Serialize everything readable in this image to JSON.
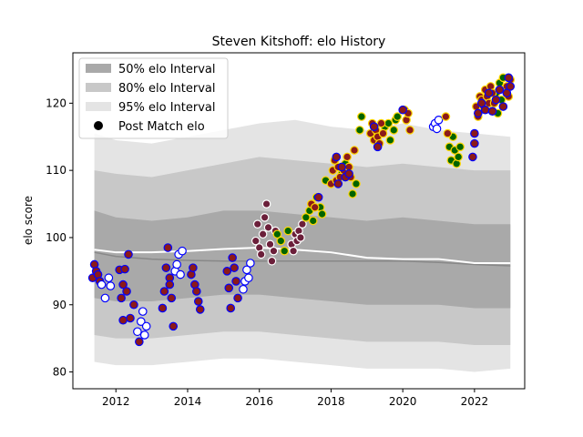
{
  "chart_data": {
    "type": "scatter",
    "title": "Steven Kitshoff: elo History",
    "xlabel": "",
    "ylabel": "elo score",
    "xlim": [
      2010.8,
      2023.4
    ],
    "ylim": [
      77.5,
      127.5
    ],
    "x_ticks": [
      2012,
      2014,
      2016,
      2018,
      2020,
      2022
    ],
    "y_ticks": [
      80,
      90,
      100,
      110,
      120
    ],
    "grid": false,
    "legend": {
      "placement": "top-left",
      "entries": [
        "50% elo Interval",
        "80% elo Interval",
        "95% elo Interval",
        "Post Match elo"
      ]
    },
    "colors": {
      "band50": "#a9a9a9",
      "band80": "#c8c8c8",
      "band95": "#e4e4e4",
      "median_line": "#ffffff",
      "mean_line": "#888888",
      "fill_win": "#8b1a1a",
      "fill_draw": "#ffffff",
      "fill_green": "#006400",
      "fill_maroon": "#6b1f3a",
      "edge_blue": "#0000ff",
      "edge_yellow": "#ffd700",
      "edge_white": "#ffffff"
    },
    "bands": {
      "x": [
        2011.4,
        2012.0,
        2013.0,
        2014.0,
        2015.0,
        2016.0,
        2017.0,
        2018.0,
        2019.0,
        2020.0,
        2021.0,
        2022.0,
        2023.0
      ],
      "p95_hi": [
        115.5,
        114.5,
        114.0,
        115.0,
        116.0,
        117.0,
        117.5,
        116.5,
        116.0,
        117.0,
        116.0,
        115.5,
        115.0
      ],
      "p80_hi": [
        110.0,
        109.5,
        109.0,
        110.0,
        111.0,
        112.0,
        111.5,
        111.0,
        110.5,
        111.0,
        110.5,
        110.0,
        110.0
      ],
      "p50_hi": [
        104.0,
        103.0,
        102.5,
        103.0,
        104.0,
        104.0,
        103.5,
        103.0,
        102.5,
        103.0,
        102.5,
        102.0,
        102.0
      ],
      "p50_lo": [
        91.0,
        90.5,
        90.5,
        91.0,
        91.5,
        91.5,
        91.0,
        90.5,
        90.0,
        90.0,
        90.0,
        89.5,
        89.5
      ],
      "p80_lo": [
        85.5,
        85.0,
        85.0,
        85.5,
        86.0,
        86.0,
        85.5,
        85.0,
        84.5,
        84.5,
        84.5,
        84.0,
        84.0
      ],
      "p95_lo": [
        81.5,
        81.0,
        81.0,
        81.5,
        82.0,
        82.0,
        81.5,
        81.0,
        80.5,
        80.5,
        80.5,
        80.0,
        80.5
      ],
      "median": [
        98.2,
        97.8,
        97.8,
        98.0,
        98.3,
        98.5,
        98.2,
        97.8,
        97.0,
        96.8,
        96.8,
        96.2,
        96.2
      ],
      "mean": [
        97.8,
        97.2,
        96.8,
        96.6,
        96.5,
        96.5,
        96.5,
        96.5,
        96.5,
        96.5,
        96.3,
        96.0,
        95.8
      ]
    },
    "series": [
      {
        "fill": "fill_win",
        "edge": "edge_blue",
        "points": [
          [
            2011.35,
            94.0
          ],
          [
            2011.4,
            96.0
          ],
          [
            2011.45,
            95.0
          ],
          [
            2011.5,
            94.5
          ],
          [
            2011.55,
            93.5
          ],
          [
            2012.1,
            95.2
          ],
          [
            2012.15,
            91.0
          ],
          [
            2012.2,
            93.0
          ],
          [
            2012.25,
            95.3
          ],
          [
            2012.3,
            92.0
          ],
          [
            2012.35,
            97.5
          ],
          [
            2012.4,
            88.0
          ],
          [
            2012.2,
            87.7
          ],
          [
            2012.5,
            90.0
          ],
          [
            2012.65,
            84.5
          ],
          [
            2013.3,
            89.5
          ],
          [
            2013.35,
            92.0
          ],
          [
            2013.4,
            95.5
          ],
          [
            2013.45,
            98.5
          ],
          [
            2013.5,
            94.0
          ],
          [
            2013.55,
            91.0
          ],
          [
            2013.6,
            86.8
          ],
          [
            2013.5,
            93.0
          ],
          [
            2014.1,
            94.5
          ],
          [
            2014.15,
            95.5
          ],
          [
            2014.2,
            93.0
          ],
          [
            2014.25,
            92.0
          ],
          [
            2014.3,
            90.5
          ],
          [
            2014.35,
            89.3
          ],
          [
            2015.1,
            95.0
          ],
          [
            2015.15,
            92.5
          ],
          [
            2015.2,
            89.5
          ],
          [
            2015.25,
            97.0
          ],
          [
            2015.3,
            95.5
          ],
          [
            2015.35,
            93.5
          ],
          [
            2015.4,
            91.0
          ]
        ]
      },
      {
        "fill": "fill_draw",
        "edge": "edge_blue",
        "points": [
          [
            2011.6,
            93.0
          ],
          [
            2011.7,
            91.0
          ],
          [
            2011.8,
            94.0
          ],
          [
            2011.85,
            92.8
          ],
          [
            2012.6,
            86.0
          ],
          [
            2012.7,
            87.5
          ],
          [
            2012.75,
            89.0
          ],
          [
            2012.8,
            85.5
          ],
          [
            2012.85,
            86.8
          ],
          [
            2013.65,
            95.0
          ],
          [
            2013.7,
            96.0
          ],
          [
            2013.75,
            97.5
          ],
          [
            2013.8,
            94.5
          ],
          [
            2013.85,
            98.0
          ],
          [
            2015.6,
            93.5
          ],
          [
            2015.65,
            95.2
          ],
          [
            2015.7,
            94.0
          ],
          [
            2015.75,
            96.2
          ],
          [
            2015.55,
            92.3
          ],
          [
            2020.85,
            116.5
          ],
          [
            2020.9,
            117.0
          ],
          [
            2020.95,
            116.2
          ],
          [
            2021.0,
            117.5
          ]
        ]
      },
      {
        "fill": "fill_maroon",
        "edge": "edge_white",
        "points": [
          [
            2015.9,
            99.5
          ],
          [
            2015.95,
            102.0
          ],
          [
            2016.0,
            98.5
          ],
          [
            2016.05,
            97.5
          ],
          [
            2016.1,
            100.5
          ],
          [
            2016.15,
            103.0
          ],
          [
            2016.2,
            105.0
          ],
          [
            2016.25,
            101.5
          ],
          [
            2016.3,
            99.0
          ],
          [
            2016.35,
            96.5
          ],
          [
            2016.4,
            98.0
          ],
          [
            2016.45,
            101.0
          ],
          [
            2016.9,
            99.0
          ],
          [
            2016.95,
            98.0
          ],
          [
            2017.0,
            100.5
          ],
          [
            2017.05,
            99.5
          ],
          [
            2017.1,
            101.0
          ],
          [
            2017.15,
            100.0
          ],
          [
            2017.2,
            102.0
          ]
        ]
      },
      {
        "fill": "fill_green",
        "edge": "edge_yellow",
        "points": [
          [
            2016.5,
            100.5
          ],
          [
            2016.6,
            99.5
          ],
          [
            2016.7,
            98.0
          ],
          [
            2016.8,
            101.0
          ],
          [
            2017.3,
            103.0
          ],
          [
            2017.4,
            104.0
          ],
          [
            2017.5,
            102.5
          ],
          [
            2017.6,
            106.0
          ],
          [
            2017.7,
            104.5
          ],
          [
            2017.75,
            103.5
          ],
          [
            2017.85,
            108.5
          ],
          [
            2018.3,
            109.5
          ],
          [
            2018.4,
            111.0
          ],
          [
            2018.6,
            106.5
          ],
          [
            2018.7,
            108.0
          ],
          [
            2018.8,
            116.0
          ],
          [
            2018.85,
            118.0
          ],
          [
            2019.5,
            116.5
          ],
          [
            2019.6,
            117.0
          ],
          [
            2019.65,
            114.5
          ],
          [
            2019.75,
            116.0
          ],
          [
            2019.8,
            117.5
          ],
          [
            2019.85,
            118.0
          ],
          [
            2021.3,
            113.5
          ],
          [
            2021.35,
            111.5
          ],
          [
            2021.4,
            115.0
          ],
          [
            2021.45,
            113.0
          ],
          [
            2021.5,
            111.0
          ],
          [
            2021.55,
            112.0
          ],
          [
            2021.6,
            113.5
          ],
          [
            2022.6,
            121.5
          ],
          [
            2022.65,
            118.5
          ],
          [
            2022.7,
            123.0
          ],
          [
            2022.75,
            120.5
          ],
          [
            2022.8,
            123.8
          ],
          [
            2022.85,
            122.0
          ]
        ]
      },
      {
        "fill": "fill_win",
        "edge": "edge_yellow",
        "points": [
          [
            2017.45,
            105.0
          ],
          [
            2017.55,
            104.5
          ],
          [
            2018.0,
            108.0
          ],
          [
            2018.05,
            110.0
          ],
          [
            2018.1,
            111.5
          ],
          [
            2018.15,
            108.5
          ],
          [
            2018.2,
            110.5
          ],
          [
            2018.25,
            109.0
          ],
          [
            2018.35,
            110.0
          ],
          [
            2018.45,
            112.0
          ],
          [
            2018.5,
            110.5
          ],
          [
            2018.55,
            109.0
          ],
          [
            2018.65,
            113.0
          ],
          [
            2019.1,
            115.5
          ],
          [
            2019.15,
            117.0
          ],
          [
            2019.2,
            114.5
          ],
          [
            2019.25,
            116.0
          ],
          [
            2019.3,
            115.0
          ],
          [
            2019.35,
            114.0
          ],
          [
            2019.4,
            117.0
          ],
          [
            2019.45,
            115.5
          ],
          [
            2020.05,
            119.0
          ],
          [
            2020.1,
            117.5
          ],
          [
            2020.15,
            118.5
          ],
          [
            2020.2,
            116.0
          ],
          [
            2021.2,
            118.0
          ],
          [
            2021.25,
            115.5
          ],
          [
            2022.05,
            119.5
          ],
          [
            2022.1,
            118.0
          ],
          [
            2022.15,
            121.0
          ],
          [
            2022.2,
            120.5
          ],
          [
            2022.25,
            119.5
          ],
          [
            2022.3,
            122.0
          ],
          [
            2022.35,
            121.0
          ],
          [
            2022.4,
            120.0
          ],
          [
            2022.45,
            122.5
          ],
          [
            2022.5,
            121.5
          ],
          [
            2022.55,
            120.0
          ],
          [
            2022.9,
            122.5
          ],
          [
            2022.95,
            121.0
          ],
          [
            2023.0,
            123.5
          ]
        ]
      },
      {
        "fill": "fill_win",
        "edge": "edge_blue",
        "points": [
          [
            2017.65,
            106.0
          ],
          [
            2018.15,
            112.0
          ],
          [
            2018.2,
            108.0
          ],
          [
            2018.3,
            110.5
          ],
          [
            2018.4,
            109.0
          ],
          [
            2018.5,
            109.5
          ],
          [
            2019.2,
            116.5
          ],
          [
            2019.3,
            113.5
          ],
          [
            2020.0,
            119.0
          ],
          [
            2022.0,
            115.5
          ],
          [
            2022.1,
            118.5
          ],
          [
            2022.2,
            120.0
          ],
          [
            2022.3,
            119.0
          ],
          [
            2022.4,
            121.5
          ],
          [
            2022.5,
            118.8
          ],
          [
            2022.6,
            120.5
          ],
          [
            2022.7,
            122.0
          ],
          [
            2022.8,
            119.5
          ],
          [
            2022.9,
            121.5
          ],
          [
            2022.95,
            123.8
          ],
          [
            2023.0,
            122.5
          ],
          [
            2021.95,
            112.0
          ],
          [
            2022.0,
            114.0
          ]
        ]
      }
    ]
  }
}
